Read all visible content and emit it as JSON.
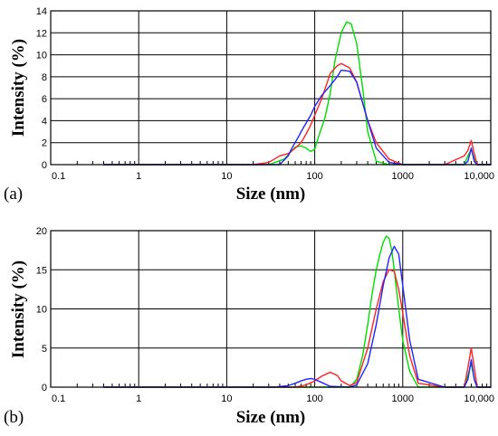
{
  "chart_data": [
    {
      "type": "line",
      "panel_label": "(a)",
      "xlabel": "Size (nm)",
      "ylabel": "Intensity (%)",
      "xscale": "log",
      "xlim": [
        0.1,
        10000
      ],
      "ylim": [
        0,
        14
      ],
      "x_ticks": [
        "0.1",
        "1",
        "10",
        "100",
        "1000",
        "10,000"
      ],
      "y_ticks": [
        "0",
        "2",
        "4",
        "6",
        "8",
        "10",
        "12",
        "14"
      ],
      "grid": true,
      "series": [
        {
          "color": "#00dd00",
          "x": [
            0.4,
            30,
            45,
            60,
            70,
            80,
            90,
            100,
            110,
            130,
            150,
            170,
            200,
            230,
            260,
            300,
            350,
            400,
            500,
            700,
            1000,
            3000,
            5000,
            5500,
            6000,
            6500,
            7000,
            10000
          ],
          "y": [
            0,
            0,
            0.5,
            1.6,
            1.7,
            1.5,
            1.2,
            1.4,
            2.5,
            4.2,
            6.5,
            9.5,
            12.0,
            13.0,
            12.8,
            11.0,
            7.0,
            3.0,
            0.3,
            0,
            0,
            0,
            0,
            0.8,
            1.4,
            0.5,
            0,
            0
          ]
        },
        {
          "color": "#ff2222",
          "x": [
            0.4,
            20,
            30,
            40,
            50,
            60,
            70,
            80,
            90,
            100,
            120,
            150,
            180,
            200,
            250,
            300,
            400,
            500,
            700,
            1000,
            3000,
            5000,
            5500,
            6000,
            6500,
            7000,
            10000
          ],
          "y": [
            0,
            0,
            0.2,
            0.8,
            1.0,
            1.5,
            2.0,
            2.8,
            3.6,
            4.5,
            6.0,
            8.3,
            9.0,
            9.2,
            8.8,
            7.5,
            4.0,
            2.0,
            0.5,
            0,
            0,
            0.8,
            1.3,
            2.2,
            1.0,
            0,
            0
          ]
        },
        {
          "color": "#2222ff",
          "x": [
            0.4,
            40,
            50,
            55,
            65,
            70,
            80,
            90,
            100,
            120,
            150,
            180,
            200,
            250,
            300,
            400,
            500,
            700,
            1000,
            3000,
            5000,
            5500,
            6000,
            6500,
            7000,
            10000
          ],
          "y": [
            0,
            0,
            0.8,
            1.5,
            2.5,
            3.0,
            3.8,
            4.5,
            5.3,
            6.3,
            7.2,
            8.0,
            8.6,
            8.5,
            7.5,
            4.0,
            1.5,
            0.2,
            0,
            0,
            0,
            0.3,
            1.5,
            0.3,
            0,
            0
          ]
        }
      ]
    },
    {
      "type": "line",
      "panel_label": "(b)",
      "xlabel": "Size (nm)",
      "ylabel": "Intensity (%)",
      "xscale": "log",
      "xlim": [
        0.1,
        10000
      ],
      "ylim": [
        0,
        20
      ],
      "x_ticks": [
        "0.1",
        "1",
        "10",
        "100",
        "1000",
        "10,000"
      ],
      "y_ticks": [
        "0",
        "5",
        "10",
        "15",
        "20"
      ],
      "grid": true,
      "series": [
        {
          "color": "#00dd00",
          "x": [
            0.4,
            250,
            300,
            350,
            400,
            450,
            500,
            550,
            600,
            650,
            700,
            750,
            800,
            900,
            1000,
            1200,
            1500,
            3000,
            5000,
            5500,
            6000,
            6500,
            7000,
            10000
          ],
          "y": [
            0,
            0,
            1.0,
            4.0,
            8.0,
            12.0,
            15.0,
            17.0,
            18.5,
            19.3,
            19.0,
            17.5,
            15.0,
            10.0,
            6.0,
            2.0,
            0,
            0,
            0,
            1.5,
            3.0,
            1.0,
            0,
            0
          ]
        },
        {
          "color": "#ff2222",
          "x": [
            0.4,
            60,
            80,
            100,
            120,
            150,
            180,
            200,
            250,
            300,
            400,
            500,
            600,
            700,
            800,
            900,
            1000,
            1200,
            1500,
            3000,
            5000,
            5500,
            6000,
            6500,
            7000,
            10000
          ],
          "y": [
            0,
            0,
            0.3,
            0.8,
            1.4,
            1.9,
            1.5,
            0.8,
            0.2,
            0.6,
            5.0,
            10.0,
            13.5,
            15.0,
            14.8,
            12.5,
            9.5,
            4.0,
            0.5,
            0,
            0,
            2.5,
            5.0,
            2.5,
            0,
            0
          ]
        },
        {
          "color": "#2222ff",
          "x": [
            0.4,
            35,
            50,
            60,
            70,
            80,
            90,
            100,
            120,
            150,
            250,
            300,
            400,
            500,
            600,
            700,
            800,
            900,
            1000,
            1200,
            1500,
            3000,
            5000,
            5500,
            6000,
            6500,
            7000,
            10000
          ],
          "y": [
            0,
            0,
            0.2,
            0.5,
            0.8,
            1.0,
            1.1,
            1.0,
            0.6,
            0.1,
            0,
            0.3,
            3.0,
            8.0,
            13.0,
            16.5,
            18.0,
            17.0,
            13.0,
            6.0,
            1.0,
            0,
            0,
            1.0,
            3.5,
            1.0,
            0,
            0
          ]
        }
      ]
    }
  ]
}
